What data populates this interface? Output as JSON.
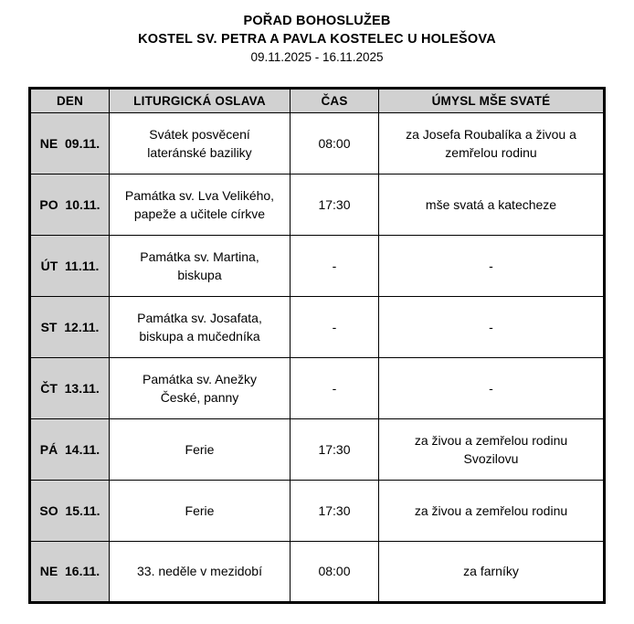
{
  "page": {
    "title": "POŘAD BOHOSLUŽEB",
    "subtitle": "KOSTEL SV. PETRA A PAVLA KOSTELEC U HOLEŠOVA",
    "date_range": "09.11.2025 - 16.11.2025"
  },
  "colors": {
    "header_bg": "#d1d1d1",
    "border": "#000000",
    "background": "#ffffff"
  },
  "table": {
    "headers": [
      "DEN",
      "LITURGICKÁ OSLAVA",
      "ČAS",
      "ÚMYSL MŠE SVATÉ"
    ],
    "rows": [
      {
        "day": "NE",
        "date": "09.11.",
        "celebration": "Svátek posvěcení\nlateránské baziliky",
        "time": "08:00",
        "intention": "za Josefa Roubalíka a živou a\nzemřelou rodinu"
      },
      {
        "day": "PO",
        "date": "10.11.",
        "celebration": "Památka sv. Lva Velikého,\npapeže a učitele církve",
        "time": "17:30",
        "intention": "mše svatá a katecheze"
      },
      {
        "day": "ÚT",
        "date": "11.11.",
        "celebration": "Památka sv. Martina,\nbiskupa",
        "time": "-",
        "intention": "-"
      },
      {
        "day": "ST",
        "date": "12.11.",
        "celebration": "Památka sv. Josafata,\nbiskupa a mučedníka",
        "time": "-",
        "intention": "-"
      },
      {
        "day": "ČT",
        "date": "13.11.",
        "celebration": "Památka sv. Anežky\nČeské, panny",
        "time": "-",
        "intention": "-"
      },
      {
        "day": "PÁ",
        "date": "14.11.",
        "celebration": "Ferie",
        "time": "17:30",
        "intention": "za živou a zemřelou rodinu\nSvozilovu"
      },
      {
        "day": "SO",
        "date": "15.11.",
        "celebration": "Ferie",
        "time": "17:30",
        "intention": "za živou a zemřelou rodinu"
      },
      {
        "day": "NE",
        "date": "16.11.",
        "celebration": "33. neděle v mezidobí",
        "time": "08:00",
        "intention": "za farníky"
      }
    ]
  }
}
